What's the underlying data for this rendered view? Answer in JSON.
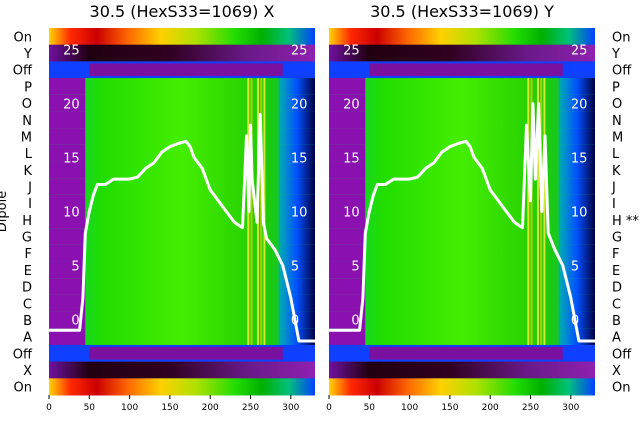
{
  "chart_data": [
    {
      "type": "heatmap",
      "title": "30.5 (HexS33=1069) X",
      "ylabel": "Dipole",
      "row_labels": [
        "On",
        "Y",
        "Off",
        "P",
        "O",
        "N",
        "M",
        "L",
        "K",
        "J",
        "I",
        "H",
        "G",
        "F",
        "E",
        "D",
        "C",
        "B",
        "A",
        "Off",
        "X",
        "On"
      ],
      "xticks": [
        0,
        50,
        100,
        150,
        200,
        250,
        300
      ],
      "xlim": [
        0,
        330
      ],
      "overlay_ticks": [
        0,
        5,
        10,
        15,
        20,
        25
      ],
      "overlay_ylim": [
        -7,
        27
      ],
      "overlay_line": {
        "color": "#ffffff",
        "x": [
          0,
          38,
          42,
          45,
          50,
          55,
          60,
          70,
          80,
          90,
          100,
          110,
          120,
          130,
          140,
          150,
          160,
          170,
          175,
          180,
          190,
          200,
          210,
          220,
          230,
          240,
          245,
          248,
          250,
          252,
          255,
          258,
          262,
          266,
          270,
          280,
          290,
          300,
          310,
          330
        ],
        "y": [
          -1,
          -1,
          2,
          8,
          10,
          11.5,
          12.5,
          12.5,
          13,
          13,
          13,
          13.2,
          14,
          14.5,
          15.5,
          16,
          16.3,
          16.5,
          16,
          15,
          14,
          12,
          11,
          10,
          9,
          8.5,
          17,
          10,
          18,
          13,
          11,
          9,
          19,
          9,
          7.5,
          6.5,
          5,
          2,
          -2,
          -2
        ]
      }
    },
    {
      "type": "heatmap",
      "title": "30.5 (HexS33=1069) Y",
      "row_labels": [
        "On",
        "Y",
        "Off",
        "P",
        "O",
        "N",
        "M",
        "L",
        "K",
        "J",
        "I",
        "H **",
        "G",
        "F",
        "E",
        "D",
        "C",
        "B",
        "A",
        "Off",
        "X",
        "On"
      ],
      "xticks": [
        0,
        50,
        100,
        150,
        200,
        250,
        300
      ],
      "xlim": [
        0,
        330
      ],
      "overlay_ticks": [
        0,
        5,
        10,
        15,
        20,
        25
      ],
      "overlay_ylim": [
        -7,
        27
      ],
      "overlay_line": {
        "color": "#ffffff",
        "x": [
          0,
          38,
          42,
          45,
          50,
          55,
          60,
          70,
          80,
          90,
          100,
          110,
          120,
          130,
          140,
          150,
          160,
          170,
          175,
          180,
          190,
          200,
          210,
          220,
          230,
          240,
          245,
          250,
          253,
          256,
          260,
          264,
          268,
          272,
          280,
          290,
          300,
          310,
          330
        ],
        "y": [
          -1,
          -1,
          2,
          8,
          10,
          11.5,
          12.5,
          12.5,
          13,
          13,
          13,
          13.2,
          14,
          14.5,
          15.5,
          16,
          16.3,
          16.5,
          16,
          15,
          14,
          12,
          11,
          10,
          9,
          8.5,
          18,
          11,
          20,
          13,
          20,
          10,
          17,
          8,
          6.5,
          5,
          2,
          -2,
          -2
        ]
      }
    }
  ]
}
